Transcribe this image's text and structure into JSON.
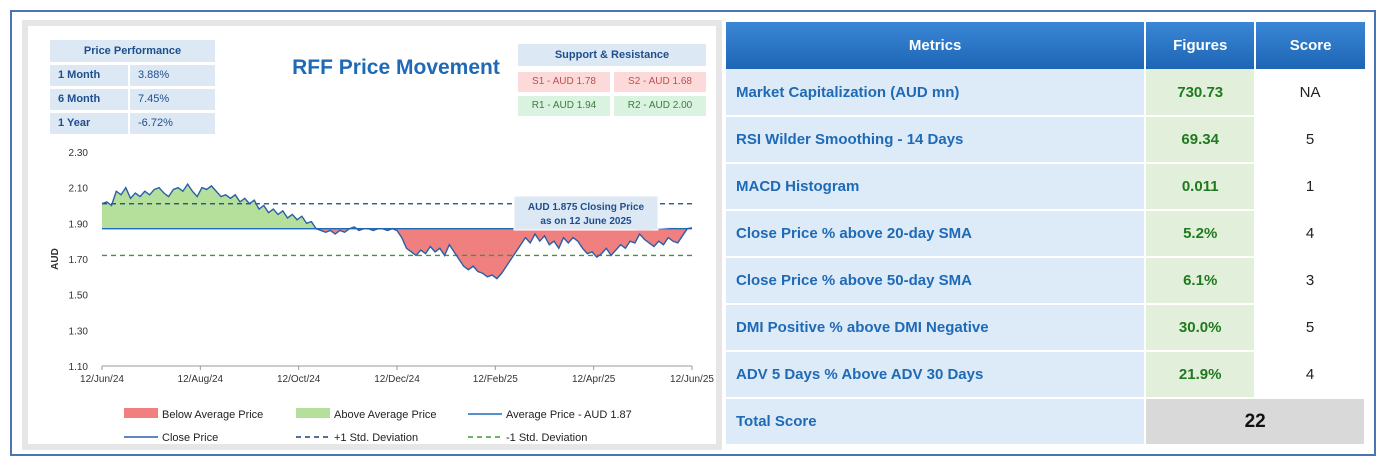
{
  "chart_data": {
    "type": "line",
    "title": "RFF Price Movement",
    "ylabel": "AUD",
    "ylim": [
      1.1,
      2.3
    ],
    "yticks": [
      "2.30",
      "2.10",
      "1.90",
      "1.70",
      "1.50",
      "1.30",
      "1.10"
    ],
    "xticks": [
      "12/Jun/24",
      "12/Aug/24",
      "12/Oct/24",
      "12/Dec/24",
      "12/Feb/25",
      "12/Apr/25",
      "12/Jun/25"
    ],
    "average": 1.87,
    "plus_std": 2.01,
    "minus_std": 1.72,
    "close_series": [
      2.01,
      2.02,
      2.0,
      2.08,
      2.06,
      2.1,
      2.04,
      2.07,
      2.05,
      2.08,
      2.06,
      2.09,
      2.1,
      2.07,
      2.05,
      2.09,
      2.1,
      2.08,
      2.12,
      2.08,
      2.05,
      2.1,
      2.09,
      2.11,
      2.08,
      2.05,
      2.06,
      2.04,
      2.06,
      2.02,
      2.04,
      2.01,
      2.03,
      1.98,
      2.0,
      1.96,
      1.98,
      1.95,
      1.97,
      1.93,
      1.95,
      1.92,
      1.94,
      1.9,
      1.91,
      1.87,
      1.86,
      1.85,
      1.86,
      1.84,
      1.86,
      1.85,
      1.87,
      1.88,
      1.86,
      1.87,
      1.87,
      1.86,
      1.87,
      1.87,
      1.86,
      1.87,
      1.86,
      1.82,
      1.76,
      1.74,
      1.72,
      1.75,
      1.73,
      1.77,
      1.74,
      1.76,
      1.72,
      1.78,
      1.74,
      1.7,
      1.66,
      1.64,
      1.66,
      1.63,
      1.62,
      1.6,
      1.61,
      1.59,
      1.62,
      1.66,
      1.7,
      1.74,
      1.78,
      1.82,
      1.79,
      1.84,
      1.8,
      1.83,
      1.78,
      1.8,
      1.76,
      1.82,
      1.79,
      1.82,
      1.8,
      1.76,
      1.73,
      1.74,
      1.71,
      1.73,
      1.76,
      1.72,
      1.75,
      1.78,
      1.76,
      1.8,
      1.79,
      1.84,
      1.81,
      1.79,
      1.77,
      1.8,
      1.78,
      1.82,
      1.8,
      1.79,
      1.83,
      1.87,
      1.875
    ],
    "closing_callout": [
      "AUD 1.875 Closing Price",
      "as on 12 June 2025"
    ],
    "legend": [
      {
        "label": "Below Average Price",
        "kind": "fill",
        "color": "#f08080"
      },
      {
        "label": "Above Average Price",
        "kind": "fill",
        "color": "#b5e09b"
      },
      {
        "label": "Average Price - AUD 1.87",
        "kind": "line",
        "color": "#1f6ab7"
      },
      {
        "label": "Close Price",
        "kind": "line",
        "color": "#2a5ea8"
      },
      {
        "label": "+1 Std. Deviation",
        "kind": "dash",
        "color": "#1f3f7a"
      },
      {
        "label": "-1 Std. Deviation",
        "kind": "dash",
        "color": "#3a9a3a"
      }
    ]
  },
  "price_performance": {
    "title": "Price Performance",
    "rows": [
      {
        "period": "1 Month",
        "value": "3.88%"
      },
      {
        "period": "6 Month",
        "value": "7.45%"
      },
      {
        "period": "1 Year",
        "value": "-6.72%"
      }
    ]
  },
  "support_resistance": {
    "title": "Support & Resistance",
    "s1": "S1 - AUD 1.78",
    "s2": "S2 - AUD 1.68",
    "r1": "R1 - AUD 1.94",
    "r2": "R2 - AUD 2.00"
  },
  "metrics": {
    "headers": [
      "Metrics",
      "Figures",
      "Score"
    ],
    "rows": [
      {
        "metric": "Market Capitalization (AUD mn)",
        "figure": "730.73",
        "score": "NA"
      },
      {
        "metric": "RSI Wilder Smoothing - 14 Days",
        "figure": "69.34",
        "score": "5"
      },
      {
        "metric": "MACD Histogram",
        "figure": "0.011",
        "score": "1"
      },
      {
        "metric": "Close Price % above 20-day SMA",
        "figure": "5.2%",
        "score": "4"
      },
      {
        "metric": "Close Price % above 50-day SMA",
        "figure": "6.1%",
        "score": "3"
      },
      {
        "metric": "DMI Positive % above DMI Negative",
        "figure": "30.0%",
        "score": "5"
      },
      {
        "metric": "ADV 5 Days % Above ADV 30 Days",
        "figure": "21.9%",
        "score": "4"
      }
    ],
    "total_label": "Total Score",
    "total_value": "22"
  }
}
